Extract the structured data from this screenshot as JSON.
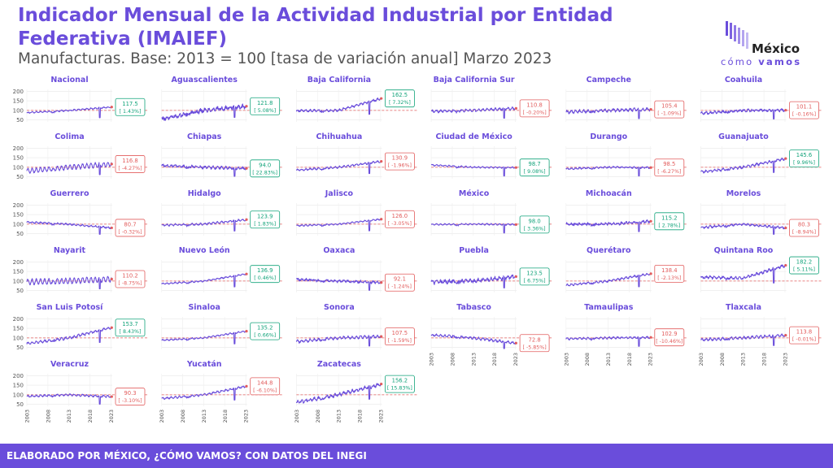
{
  "header": {
    "title": "Indicador Mensual de la Actividad Industrial por Entidad Federativa (IMAIEF)",
    "subtitle": "Manufacturas. Base: 2013 = 100 [tasa de variación anual] Marzo 2023"
  },
  "logo": {
    "line1": "México",
    "line2a": "cómo",
    "line2b": "vamos"
  },
  "footer": {
    "text": "ELABORADO POR MÉXICO, ¿CÓMO VAMOS? CON DATOS DEL INEGI"
  },
  "colors": {
    "accent": "#6a4ddb",
    "positive": "#12a37a",
    "negative": "#e25c5c",
    "reference_line": "#e25c5c"
  },
  "chart_data": {
    "type": "line",
    "layout": "small-multiples",
    "x_ticks": [
      "2003",
      "2008",
      "2013",
      "2018",
      "2023"
    ],
    "y_ticks": [
      50,
      100,
      150,
      200
    ],
    "ylim": [
      40,
      210
    ],
    "xlim": [
      2003,
      2023.3
    ],
    "reference_value": 100,
    "grid": true,
    "panels": [
      {
        "name": "Nacional",
        "start": 88,
        "mid": 100,
        "end": 117.5,
        "seas": 3,
        "volatility": 2,
        "value": "117.5",
        "change": "[ 1.43%]",
        "positive": true
      },
      {
        "name": "Aguascalientes",
        "start": 55,
        "mid": 100,
        "end": 121.8,
        "seas": 6,
        "volatility": 8,
        "value": "121.8",
        "change": "[ 5.08%]",
        "positive": true
      },
      {
        "name": "Baja California",
        "start": 98,
        "mid": 100,
        "end": 162.5,
        "seas": 4,
        "volatility": 4,
        "value": "162.5",
        "change": "[ 7.32%]",
        "positive": true
      },
      {
        "name": "Baja California Sur",
        "start": 95,
        "mid": 100,
        "end": 110.8,
        "seas": 5,
        "volatility": 4,
        "value": "110.8",
        "change": "[ -0.20%]",
        "positive": false
      },
      {
        "name": "Campeche",
        "start": 92,
        "mid": 100,
        "end": 105.4,
        "seas": 6,
        "volatility": 5,
        "value": "105.4",
        "change": "[ -1.09%]",
        "positive": false
      },
      {
        "name": "Coahuila",
        "start": 85,
        "mid": 100,
        "end": 101.1,
        "seas": 4,
        "volatility": 5,
        "value": "101.1",
        "change": "[ -0.16%]",
        "positive": false
      },
      {
        "name": "Colima",
        "start": 80,
        "mid": 100,
        "end": 116.8,
        "seas": 12,
        "volatility": 3,
        "value": "116.8",
        "change": "[ -4.27%]",
        "positive": false
      },
      {
        "name": "Chiapas",
        "start": 110,
        "mid": 100,
        "end": 94.0,
        "seas": 5,
        "volatility": 5,
        "value": "94.0",
        "change": "[ 22.83%]",
        "positive": true
      },
      {
        "name": "Chihuahua",
        "start": 85,
        "mid": 100,
        "end": 130.9,
        "seas": 4,
        "volatility": 3,
        "value": "130.9",
        "change": "[ -1.96%]",
        "positive": false
      },
      {
        "name": "Ciudad de México",
        "start": 112,
        "mid": 100,
        "end": 98.7,
        "seas": 3,
        "volatility": 2,
        "value": "98.7",
        "change": "[ 9.08%]",
        "positive": true
      },
      {
        "name": "Durango",
        "start": 92,
        "mid": 100,
        "end": 98.5,
        "seas": 3,
        "volatility": 3,
        "value": "98.5",
        "change": "[ -6.27%]",
        "positive": false
      },
      {
        "name": "Guanajuato",
        "start": 75,
        "mid": 100,
        "end": 145.6,
        "seas": 5,
        "volatility": 4,
        "value": "145.6",
        "change": "[ 9.96%]",
        "positive": true
      },
      {
        "name": "Guerrero",
        "start": 110,
        "mid": 100,
        "end": 80.7,
        "seas": 3,
        "volatility": 3,
        "value": "80.7",
        "change": "[ -0.32%]",
        "positive": false
      },
      {
        "name": "Hidalgo",
        "start": 95,
        "mid": 100,
        "end": 123.9,
        "seas": 4,
        "volatility": 3,
        "value": "123.9",
        "change": "[ 1.83%]",
        "positive": true
      },
      {
        "name": "Jalisco",
        "start": 92,
        "mid": 100,
        "end": 126.0,
        "seas": 3,
        "volatility": 2,
        "value": "126.0",
        "change": "[ -3.05%]",
        "positive": false
      },
      {
        "name": "México",
        "start": 98,
        "mid": 100,
        "end": 98.0,
        "seas": 3,
        "volatility": 2,
        "value": "98.0",
        "change": "[ 3.36%]",
        "positive": true
      },
      {
        "name": "Michoacán",
        "start": 100,
        "mid": 100,
        "end": 115.2,
        "seas": 4,
        "volatility": 6,
        "value": "115.2",
        "change": "[ 2.78%]",
        "positive": true
      },
      {
        "name": "Morelos",
        "start": 82,
        "mid": 100,
        "end": 80.3,
        "seas": 4,
        "volatility": 4,
        "value": "80.3",
        "change": "[ -8.94%]",
        "positive": false
      },
      {
        "name": "Nayarit",
        "start": 95,
        "mid": 100,
        "end": 110.2,
        "seas": 14,
        "volatility": 3,
        "value": "110.2",
        "change": "[ -8.75%]",
        "positive": false
      },
      {
        "name": "Nuevo León",
        "start": 85,
        "mid": 100,
        "end": 136.9,
        "seas": 3,
        "volatility": 2,
        "value": "136.9",
        "change": "[ 0.46%]",
        "positive": true
      },
      {
        "name": "Oaxaca",
        "start": 108,
        "mid": 100,
        "end": 92.1,
        "seas": 4,
        "volatility": 5,
        "value": "92.1",
        "change": "[ -1.24%]",
        "positive": false
      },
      {
        "name": "Puebla",
        "start": 95,
        "mid": 100,
        "end": 123.5,
        "seas": 6,
        "volatility": 8,
        "value": "123.5",
        "change": "[ 6.75%]",
        "positive": true
      },
      {
        "name": "Querétaro",
        "start": 78,
        "mid": 100,
        "end": 138.4,
        "seas": 4,
        "volatility": 3,
        "value": "138.4",
        "change": "[ -2.13%]",
        "positive": false
      },
      {
        "name": "Quintana Roo",
        "start": 120,
        "mid": 115,
        "end": 182.2,
        "seas": 5,
        "volatility": 5,
        "value": "182.2",
        "change": "[ 5.11%]",
        "positive": true
      },
      {
        "name": "San Luis Potosí",
        "start": 70,
        "mid": 100,
        "end": 153.7,
        "seas": 5,
        "volatility": 4,
        "value": "153.7",
        "change": "[ 8.43%]",
        "positive": true
      },
      {
        "name": "Sinaloa",
        "start": 88,
        "mid": 100,
        "end": 135.2,
        "seas": 3,
        "volatility": 2,
        "value": "135.2",
        "change": "[ 0.66%]",
        "positive": true
      },
      {
        "name": "Sonora",
        "start": 80,
        "mid": 100,
        "end": 107.5,
        "seas": 6,
        "volatility": 4,
        "value": "107.5",
        "change": "[ -1.59%]",
        "positive": false
      },
      {
        "name": "Tabasco",
        "start": 115,
        "mid": 100,
        "end": 72.8,
        "seas": 5,
        "volatility": 4,
        "value": "72.8",
        "change": "[ -5.85%]",
        "positive": false
      },
      {
        "name": "Tamaulipas",
        "start": 95,
        "mid": 100,
        "end": 102.9,
        "seas": 4,
        "volatility": 3,
        "value": "102.9",
        "change": "[ -10.46%]",
        "positive": false
      },
      {
        "name": "Tlaxcala",
        "start": 90,
        "mid": 100,
        "end": 113.8,
        "seas": 5,
        "volatility": 4,
        "value": "113.8",
        "change": "[ -0.01%]",
        "positive": false
      },
      {
        "name": "Veracruz",
        "start": 92,
        "mid": 100,
        "end": 90.3,
        "seas": 4,
        "volatility": 3,
        "value": "90.3",
        "change": "[ -3.10%]",
        "positive": false
      },
      {
        "name": "Yucatán",
        "start": 80,
        "mid": 100,
        "end": 144.8,
        "seas": 4,
        "volatility": 3,
        "value": "144.8",
        "change": "[ -6.10%]",
        "positive": false
      },
      {
        "name": "Zacatecas",
        "start": 60,
        "mid": 100,
        "end": 156.2,
        "seas": 6,
        "volatility": 6,
        "value": "156.2",
        "change": "[ 15.83%]",
        "positive": true
      }
    ]
  }
}
